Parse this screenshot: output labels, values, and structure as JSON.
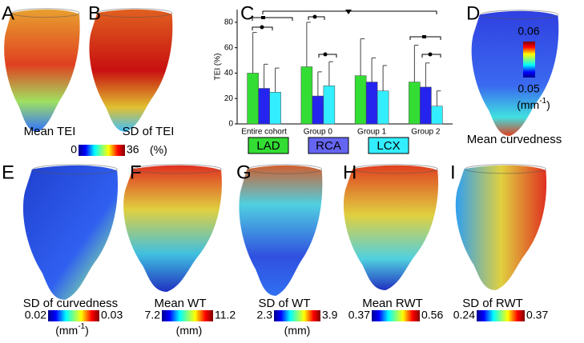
{
  "chart_data": {
    "type": "bar",
    "ylabel": "TEI (%)",
    "categories": [
      "Entire cohort",
      "Group 0",
      "Group 1",
      "Group 2"
    ],
    "series": [
      {
        "name": "LAD",
        "color": "#33dd33",
        "values": [
          40,
          45,
          38,
          33
        ],
        "errors": [
          32,
          35,
          29,
          29
        ]
      },
      {
        "name": "RCA",
        "color": "#2424ee",
        "values": [
          28,
          22,
          33,
          29
        ],
        "errors": [
          19,
          19,
          19,
          19
        ]
      },
      {
        "name": "LCX",
        "color": "#33eeff",
        "values": [
          25,
          30,
          26,
          14
        ],
        "errors": [
          19,
          19,
          20,
          12
        ]
      }
    ],
    "ylim": [
      0,
      90
    ],
    "yticks": [
      0,
      20,
      40,
      60,
      80
    ]
  },
  "panels": [
    {
      "letter": "A",
      "caption": "Mean TEI"
    },
    {
      "letter": "B",
      "caption": "SD of TEI"
    },
    {
      "letter": "C"
    },
    {
      "letter": "D",
      "caption": "Mean curvedness"
    },
    {
      "letter": "E",
      "caption": "SD of curvedness"
    },
    {
      "letter": "F",
      "caption": "Mean WT"
    },
    {
      "letter": "G",
      "caption": "SD of WT"
    },
    {
      "letter": "H",
      "caption": "Mean RWT"
    },
    {
      "letter": "I",
      "caption": "SD of RWT"
    }
  ],
  "colorbars": [
    {
      "low": "0",
      "high": "36",
      "unit": "(%)"
    },
    {
      "low": "0.05",
      "high": "0.06",
      "unit": "(mm",
      "exp": "-1",
      "close": ")"
    },
    {
      "low": "0.02",
      "high": "0.03",
      "unit": "(mm",
      "exp": "-1",
      "close": ")"
    },
    {
      "low": "7.2",
      "high": "11.2",
      "unit": "(mm)"
    },
    {
      "low": "2.3",
      "high": "3.9",
      "unit": "(mm)"
    },
    {
      "low": "0.37",
      "high": "0.56"
    },
    {
      "low": "0.24",
      "high": "0.37"
    }
  ]
}
